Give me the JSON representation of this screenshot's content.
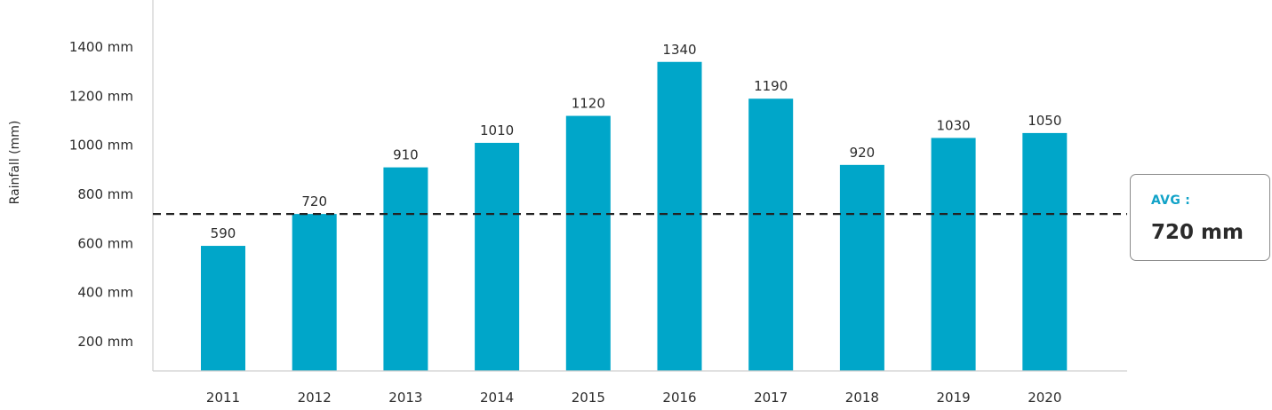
{
  "chart_data": {
    "type": "bar",
    "categories": [
      "2011",
      "2012",
      "2013",
      "2014",
      "2015",
      "2016",
      "2017",
      "2018",
      "2019",
      "2020"
    ],
    "values": [
      590,
      720,
      910,
      1010,
      1120,
      1340,
      1190,
      920,
      1030,
      1050
    ],
    "data_labels": [
      "590",
      "720",
      "910",
      "1010",
      "1120",
      "1340",
      "1190",
      "920",
      "1030",
      "1050"
    ],
    "title": "",
    "xlabel": "",
    "ylabel": "Rainfall (mm)",
    "y_ticks": [
      200,
      400,
      600,
      800,
      1000,
      1200,
      1400
    ],
    "y_tick_labels": [
      "200 mm",
      "400 mm",
      "600 mm",
      "800 mm",
      "1000 mm",
      "1200 mm",
      "1400 mm"
    ],
    "ylim": [
      80,
      1520
    ],
    "grid": false,
    "bar_color": "#00a6c9",
    "average": {
      "value": 720,
      "label": "AVG :",
      "value_text": "720 mm",
      "line_style": "dashed",
      "line_color": "#222222",
      "accent_color": "#12a3c8"
    }
  }
}
